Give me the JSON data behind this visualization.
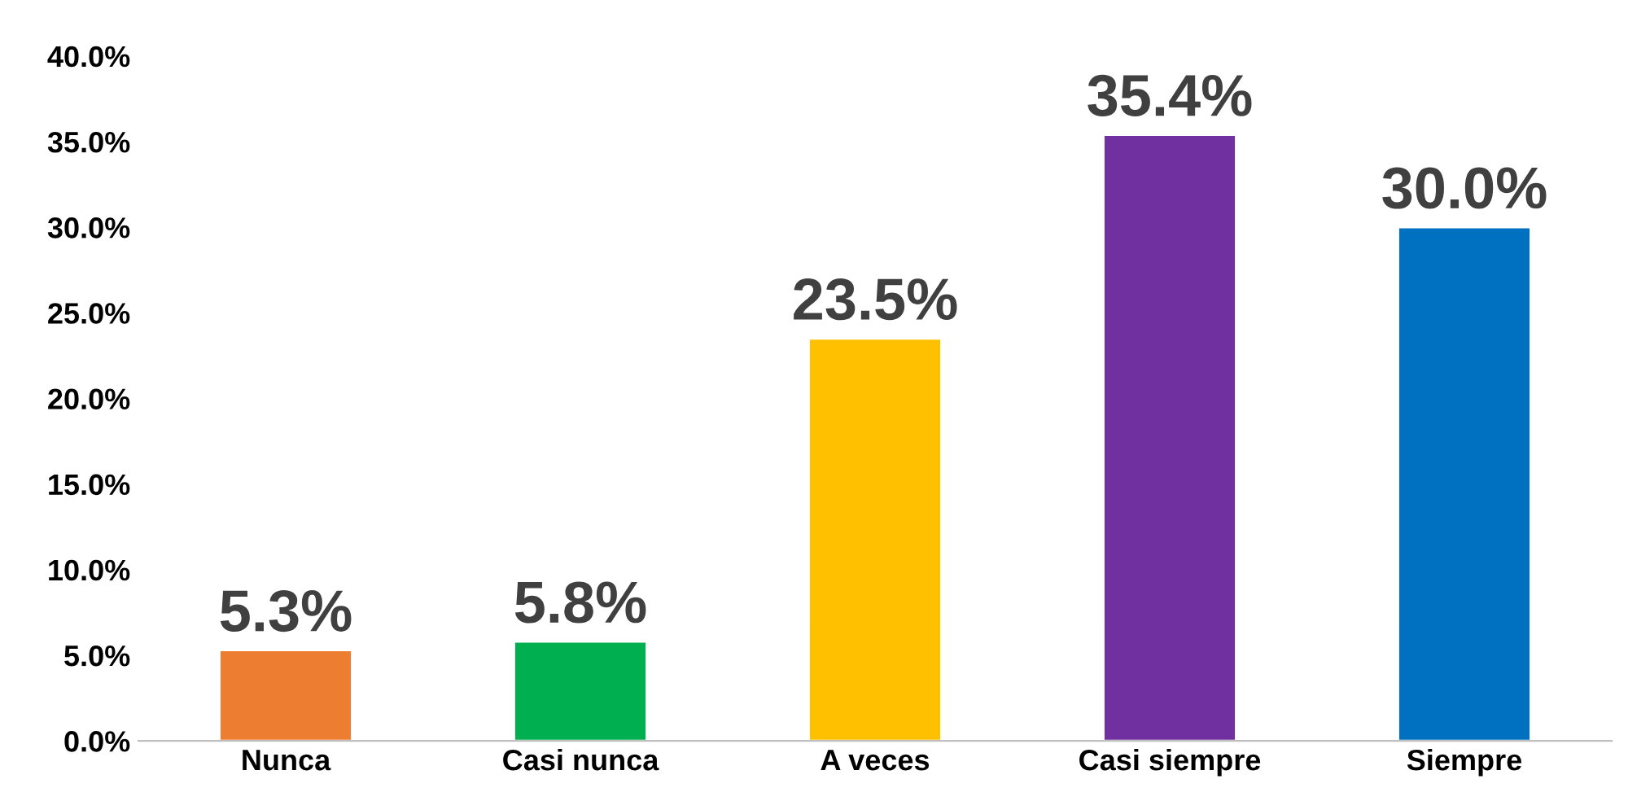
{
  "chart_data": {
    "type": "bar",
    "categories": [
      "Nunca",
      "Casi nunca",
      "A veces",
      "Casi siempre",
      "Siempre"
    ],
    "values": [
      5.3,
      5.8,
      23.5,
      35.4,
      30.0
    ],
    "colors": [
      "#ed7d31",
      "#00b050",
      "#ffc000",
      "#7030a0",
      "#0070c0"
    ],
    "value_labels": [
      "5.3%",
      "5.8%",
      "23.5%",
      "35.4%",
      "30.0%"
    ],
    "ylim": [
      0,
      40
    ],
    "yticks": [
      {
        "value": 0,
        "label": "0.0%"
      },
      {
        "value": 5,
        "label": "5.0%"
      },
      {
        "value": 10,
        "label": "10.0%"
      },
      {
        "value": 15,
        "label": "15.0%"
      },
      {
        "value": 20,
        "label": "20.0%"
      },
      {
        "value": 25,
        "label": "25.0%"
      },
      {
        "value": 30,
        "label": "30.0%"
      },
      {
        "value": 35,
        "label": "35.0%"
      },
      {
        "value": 40,
        "label": "40.0%"
      }
    ],
    "grid": false
  }
}
